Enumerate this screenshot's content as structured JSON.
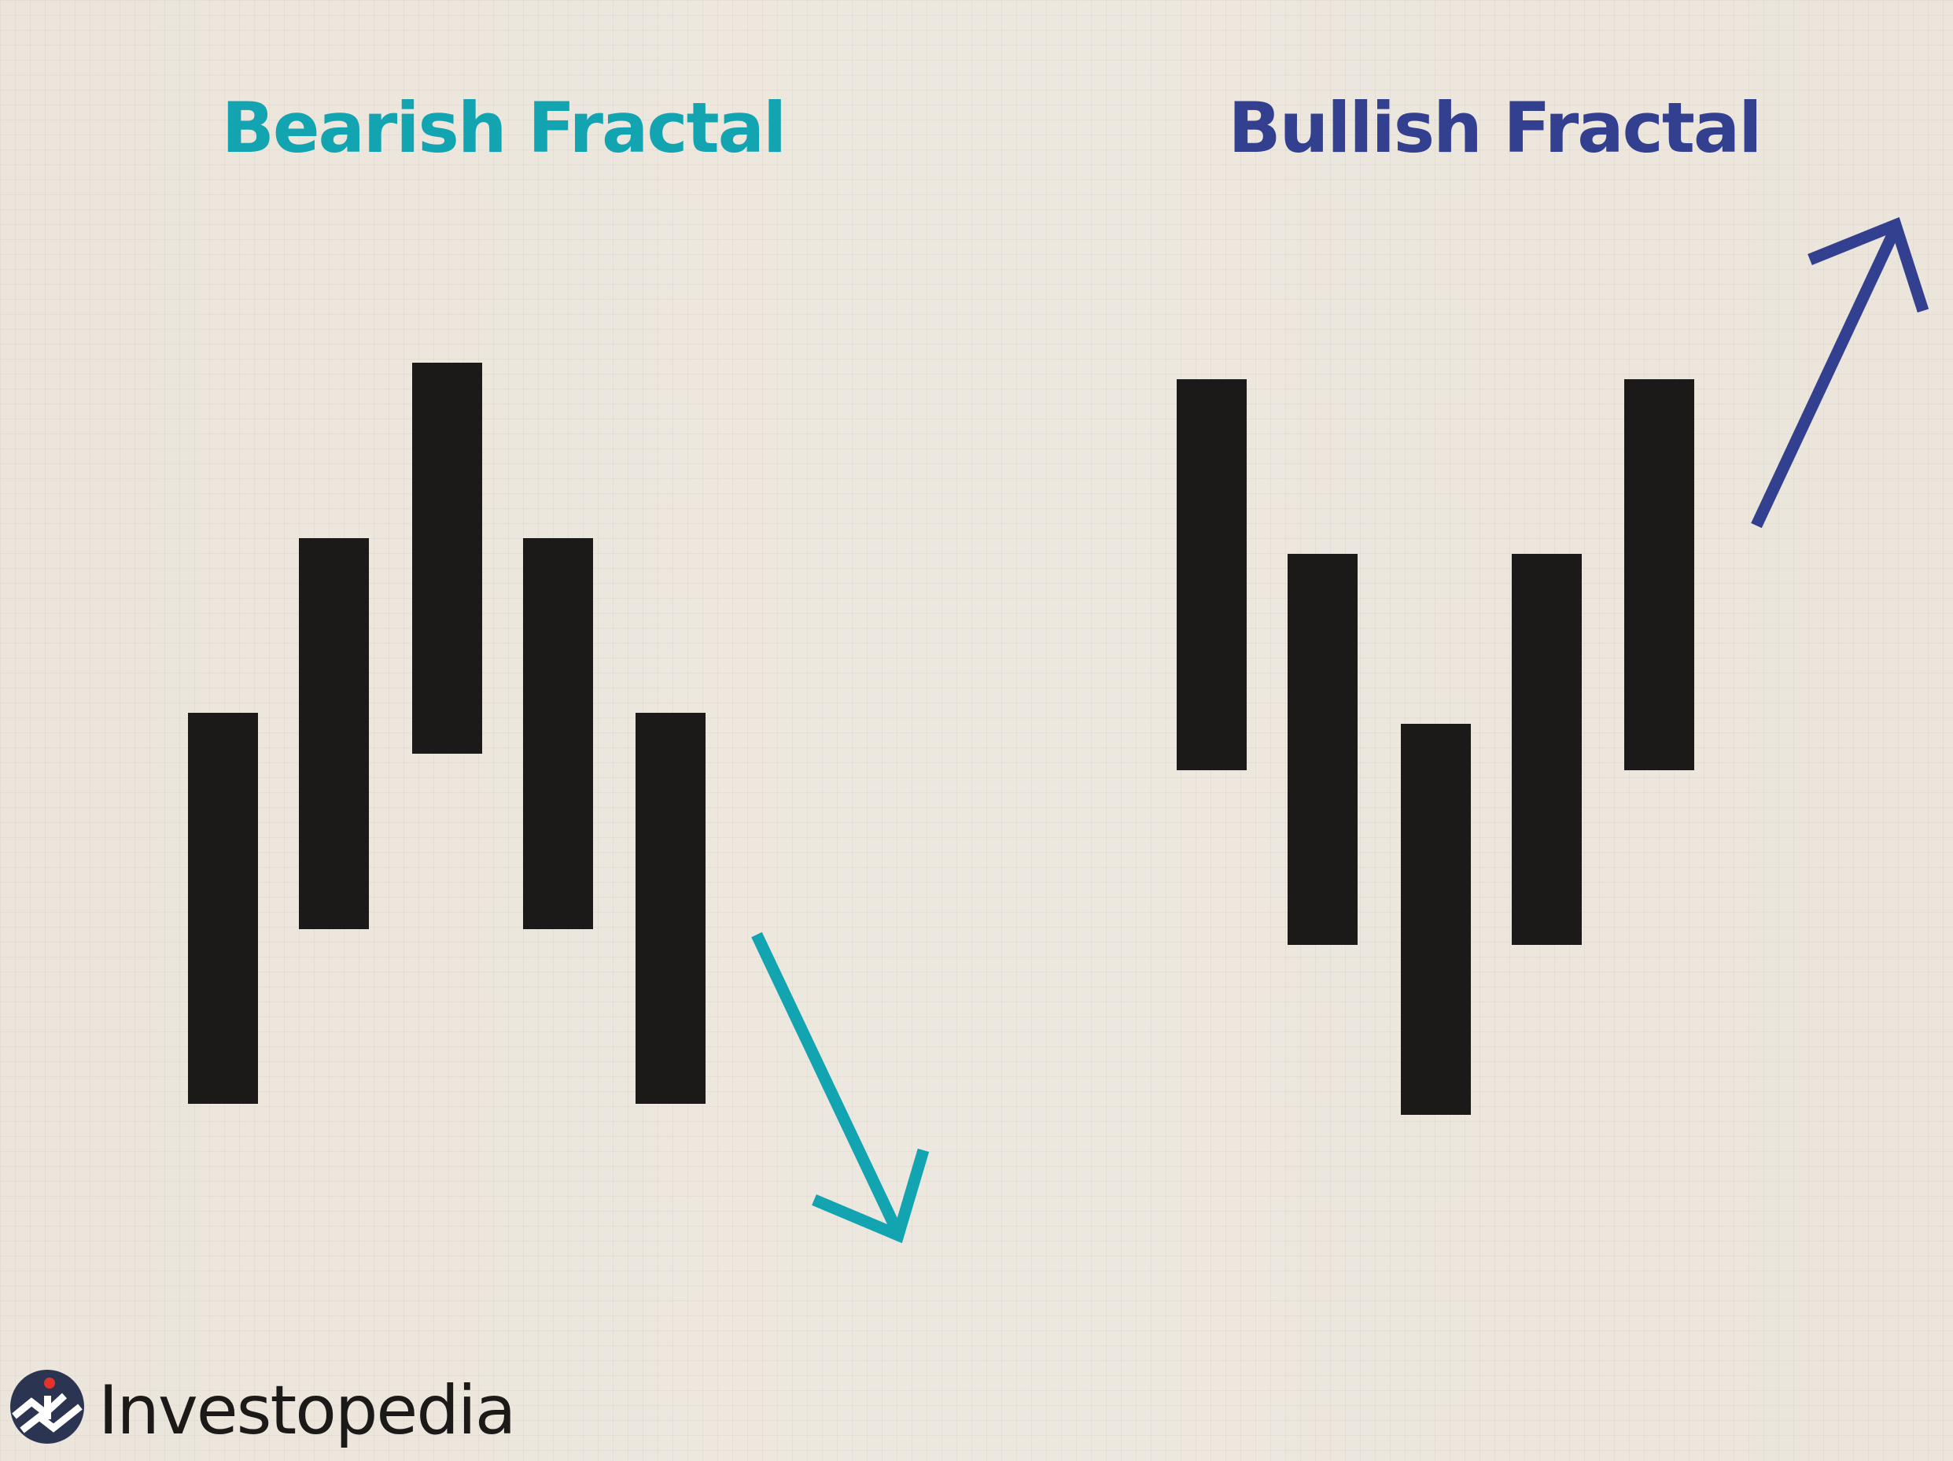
{
  "bearish": {
    "title": "Bearish Fractal",
    "color": "#12a4b0",
    "arrow_direction": "down-right",
    "bars": [
      {
        "bar": 1,
        "level": "low"
      },
      {
        "bar": 2,
        "level": "middle"
      },
      {
        "bar": 3,
        "level": "high"
      },
      {
        "bar": 4,
        "level": "middle"
      },
      {
        "bar": 5,
        "level": "low"
      }
    ]
  },
  "bullish": {
    "title": "Bullish Fractal",
    "color": "#33408f",
    "arrow_direction": "up-right",
    "bars": [
      {
        "bar": 1,
        "level": "high"
      },
      {
        "bar": 2,
        "level": "middle"
      },
      {
        "bar": 3,
        "level": "low"
      },
      {
        "bar": 4,
        "level": "middle"
      },
      {
        "bar": 5,
        "level": "high"
      }
    ]
  },
  "bar_color": "#1b1a18",
  "background_color": "#ebe5db",
  "brand": {
    "name": "Investopedia",
    "icon": "investopedia-logo-icon"
  }
}
